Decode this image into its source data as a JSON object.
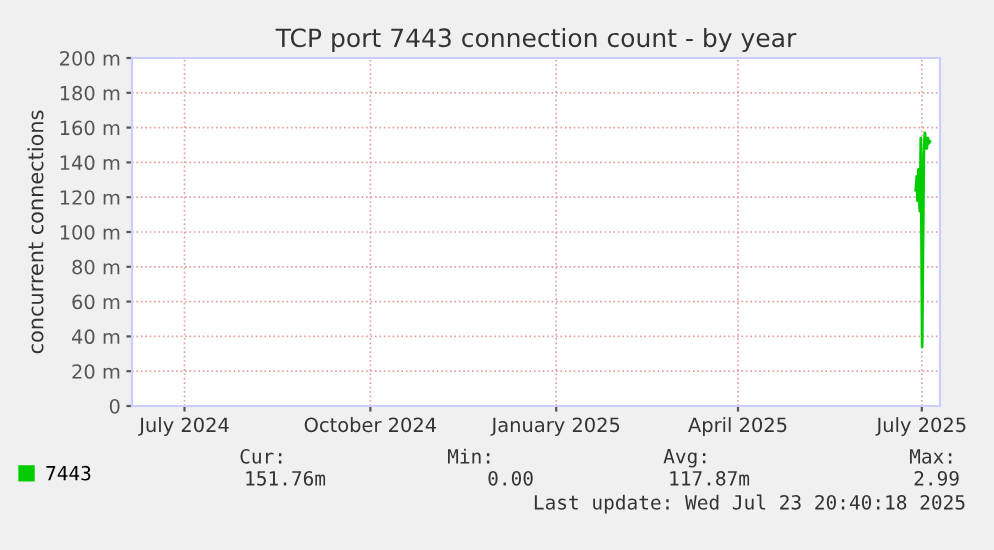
{
  "chart_data": {
    "type": "line",
    "title": "TCP port 7443 connection count - by year",
    "ylabel": "concurrent connections",
    "x": [
      "2025-07-13T00:00",
      "2025-07-13T12:00",
      "2025-07-13T20:00",
      "2025-07-14T08:00",
      "2025-07-14T16:00",
      "2025-07-15T00:00",
      "2025-07-15T06:00",
      "2025-07-15T12:00",
      "2025-07-15T20:00",
      "2025-07-16T04:00",
      "2025-07-16T12:00",
      "2025-07-17T00:00",
      "2025-07-17T12:00",
      "2025-07-18T00:00",
      "2025-07-18T12:00",
      "2025-07-19T00:00",
      "2025-07-19T12:00",
      "2025-07-20T00:00"
    ],
    "series": [
      {
        "name": "7443",
        "color": "#00cc00",
        "values": [
          124,
          132,
          118,
          136,
          120,
          112,
          125,
          154,
          100,
          34,
          80,
          145,
          157,
          152,
          148,
          154,
          151,
          152
        ]
      }
    ],
    "xlim": [
      "2024-06-20",
      "2025-07-25"
    ],
    "xticks": [
      {
        "value": "2024-07-16",
        "label": "July 2024"
      },
      {
        "value": "2024-10-16",
        "label": "October 2024"
      },
      {
        "value": "2025-01-16",
        "label": "January 2025"
      },
      {
        "value": "2025-04-16",
        "label": "April 2025"
      },
      {
        "value": "2025-07-16",
        "label": "July 2025"
      }
    ],
    "ylim": [
      0,
      200
    ],
    "yticks": [
      0,
      {
        "value": 20,
        "label": "20 m"
      },
      {
        "value": 40,
        "label": "40 m"
      },
      {
        "value": 60,
        "label": "60 m"
      },
      {
        "value": 80,
        "label": "80 m"
      },
      {
        "value": 100,
        "label": "100 m"
      },
      {
        "value": 120,
        "label": "120 m"
      },
      {
        "value": 140,
        "label": "140 m"
      },
      {
        "value": 160,
        "label": "160 m"
      },
      {
        "value": 180,
        "label": "180 m"
      },
      {
        "value": 200,
        "label": "200 m"
      }
    ],
    "grid": true,
    "legend": "bottom",
    "marker": "none",
    "line_style": "solid",
    "annotations": [
      "Cur:",
      "Min:",
      "Avg:",
      "Max:",
      "151.76m",
      "0.00",
      "117.87m",
      "2.99",
      "Last update: Wed Jul 23 20:40:18 2025"
    ]
  }
}
